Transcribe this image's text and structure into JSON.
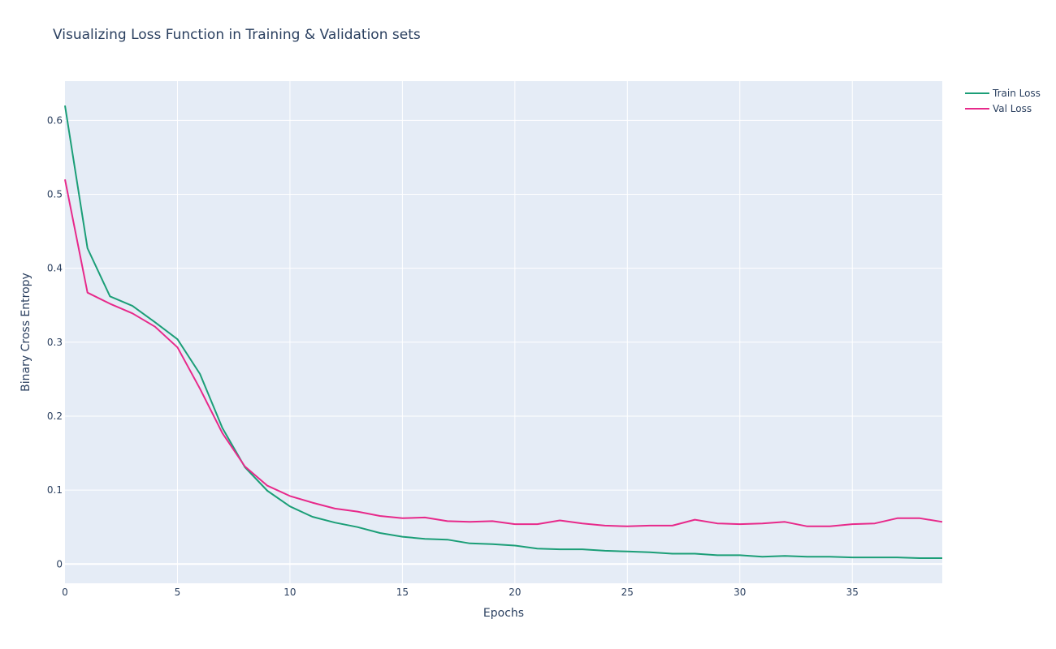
{
  "chart_data": {
    "type": "line",
    "title": "Visualizing Loss Function in Training & Validation sets",
    "xlabel": "Epochs",
    "ylabel": "Binary Cross Entropy",
    "xlim": [
      0,
      39
    ],
    "ylim": [
      -0.026,
      0.653
    ],
    "x_ticks": [
      0,
      5,
      10,
      15,
      20,
      25,
      30,
      35
    ],
    "y_ticks": [
      0,
      0.1,
      0.2,
      0.3,
      0.4,
      0.5,
      0.6
    ],
    "y_tick_labels": [
      "0",
      "0.1",
      "0.2",
      "0.3",
      "0.4",
      "0.5",
      "0.6"
    ],
    "grid": true,
    "legend_position": "top-right",
    "background_color": "#e5ecf6",
    "x": [
      0,
      1,
      2,
      3,
      4,
      5,
      6,
      7,
      8,
      9,
      10,
      11,
      12,
      13,
      14,
      15,
      16,
      17,
      18,
      19,
      20,
      21,
      22,
      23,
      24,
      25,
      26,
      27,
      28,
      29,
      30,
      31,
      32,
      33,
      34,
      35,
      36,
      37,
      38,
      39
    ],
    "series": [
      {
        "name": "Train Loss",
        "color": "#1b9e77",
        "values": [
          0.62,
          0.427,
          0.362,
          0.349,
          0.327,
          0.304,
          0.257,
          0.184,
          0.131,
          0.099,
          0.078,
          0.064,
          0.056,
          0.05,
          0.042,
          0.037,
          0.034,
          0.033,
          0.028,
          0.027,
          0.025,
          0.021,
          0.02,
          0.02,
          0.018,
          0.017,
          0.016,
          0.014,
          0.014,
          0.012,
          0.012,
          0.01,
          0.011,
          0.01,
          0.01,
          0.009,
          0.009,
          0.009,
          0.008,
          0.008
        ]
      },
      {
        "name": "Val Loss",
        "color": "#e7298a",
        "values": [
          0.52,
          0.367,
          0.352,
          0.339,
          0.321,
          0.293,
          0.237,
          0.177,
          0.132,
          0.106,
          0.092,
          0.083,
          0.075,
          0.071,
          0.065,
          0.062,
          0.063,
          0.058,
          0.057,
          0.058,
          0.054,
          0.054,
          0.059,
          0.055,
          0.052,
          0.051,
          0.052,
          0.052,
          0.06,
          0.055,
          0.054,
          0.055,
          0.057,
          0.051,
          0.051,
          0.054,
          0.055,
          0.062,
          0.062,
          0.057
        ]
      }
    ]
  }
}
